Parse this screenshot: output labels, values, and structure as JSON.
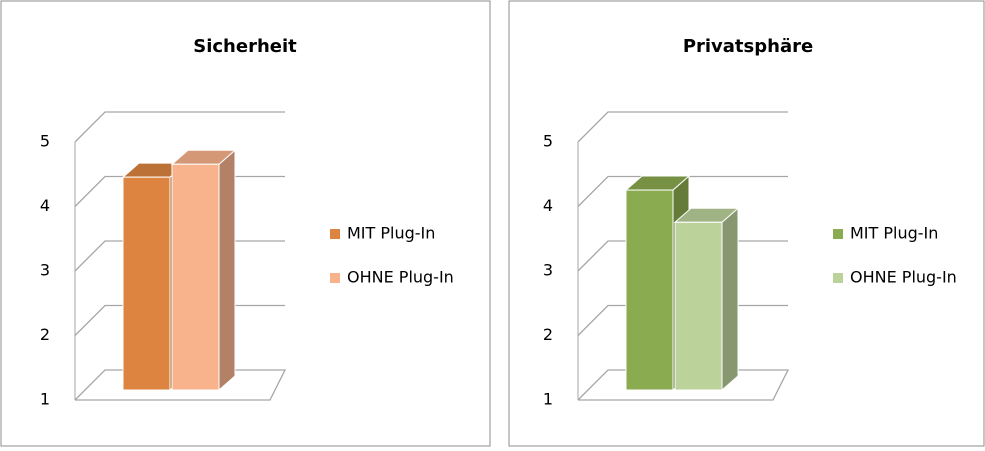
{
  "chart_data": [
    {
      "type": "bar3d",
      "title": "Sicherheit",
      "categories": [
        null
      ],
      "series": [
        {
          "name": "MIT Plug-In",
          "color": "#dd8540",
          "values": [
            4.3
          ]
        },
        {
          "name": "OHNE Plug-In",
          "color": "#f9b38c",
          "values": [
            4.5
          ]
        }
      ],
      "ylim": [
        1,
        5
      ],
      "yticks": [
        1,
        2,
        3,
        4,
        5
      ],
      "grid": true,
      "legend": "right"
    },
    {
      "type": "bar3d",
      "title": "Privatsphäre",
      "categories": [
        null
      ],
      "series": [
        {
          "name": "MIT Plug-In",
          "color": "#8bab50",
          "values": [
            4.1
          ]
        },
        {
          "name": "OHNE Plug-In",
          "color": "#bcd29b",
          "values": [
            3.6
          ]
        }
      ],
      "ylim": [
        1,
        5
      ],
      "yticks": [
        1,
        2,
        3,
        4,
        5
      ],
      "grid": true,
      "legend": "right"
    }
  ]
}
